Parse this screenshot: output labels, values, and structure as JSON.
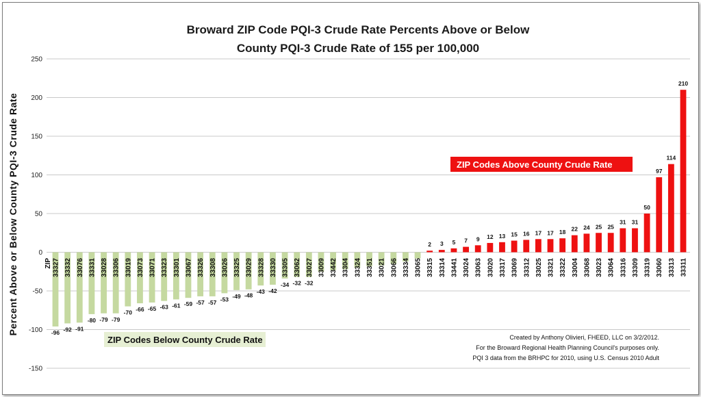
{
  "chart_data": {
    "type": "bar",
    "title": "Broward ZIP Code PQI-3 Crude Rate Percents Above or Below",
    "subtitle": "County PQI-3 Crude Rate of 155 per 100,000",
    "ylabel": "Percent  Above or Below County  PQI-3 Crude Rate",
    "xlabel": "",
    "axis_category_label": "ZIP",
    "ylim": [
      -150,
      250
    ],
    "yticks": [
      250,
      200,
      150,
      100,
      50,
      0,
      -50,
      -100,
      -150
    ],
    "grid": true,
    "categories": [
      "33327",
      "33332",
      "33076",
      "33331",
      "33028",
      "33306",
      "33019",
      "33073",
      "33071",
      "33323",
      "33301",
      "33067",
      "33326",
      "33308",
      "33026",
      "33325",
      "33029",
      "33328",
      "33330",
      "33305",
      "33062",
      "33027",
      "33009",
      "33442",
      "33304",
      "33324",
      "33351",
      "33021",
      "33066",
      "33334",
      "33065",
      "33315",
      "33314",
      "33441",
      "33024",
      "33063",
      "33020",
      "33317",
      "33069",
      "33312",
      "33025",
      "33321",
      "33322",
      "33004",
      "33068",
      "33023",
      "33064",
      "33316",
      "33309",
      "33319",
      "33060",
      "33313",
      "33311"
    ],
    "values": [
      -96,
      -92,
      -91,
      -80,
      -79,
      -79,
      -70,
      -66,
      -65,
      -63,
      -61,
      -59,
      -57,
      -57,
      -53,
      -49,
      -48,
      -43,
      -42,
      -34,
      -32,
      -32,
      -25,
      -23,
      -22,
      -20,
      -18,
      -17,
      -15,
      -12,
      -8,
      2,
      3,
      5,
      7,
      9,
      12,
      13,
      15,
      16,
      17,
      17,
      18,
      22,
      24,
      25,
      25,
      31,
      31,
      50,
      97,
      114,
      210
    ],
    "data_labels": [
      "-96",
      "-92",
      "-91",
      "-80",
      "-79",
      "-79",
      "-70",
      "-66",
      "-65",
      "-63",
      "-61",
      "-59",
      "-57",
      "-57",
      "-53",
      "-49",
      "-48",
      "-43",
      "-42",
      "-34",
      "-32",
      "-32",
      "",
      "",
      "",
      "",
      "",
      "",
      "",
      "",
      "",
      "2",
      "3",
      "5",
      "7",
      "9",
      "12",
      "13",
      "15",
      "16",
      "17",
      "17",
      "18",
      "22",
      "24",
      "25",
      "25",
      "31",
      "31",
      "50",
      "97",
      "114",
      "210"
    ],
    "colors": {
      "below": "#c5d9a0",
      "above": "#ee1111",
      "grid": "#c8c8c8"
    },
    "annotations": {
      "above_box": "ZIP Codes Above County Crude Rate",
      "below_box": "ZIP Codes Below County Crude Rate",
      "credit": [
        "Created by Anthony Olivieri, FHEED, LLC on 3/2/2012.",
        "For the Broward Regional Health Planning Council's purposes only.",
        "PQI 3 data from the BRHPC for 2010, using U.S. Census 2010 Adult"
      ]
    }
  }
}
